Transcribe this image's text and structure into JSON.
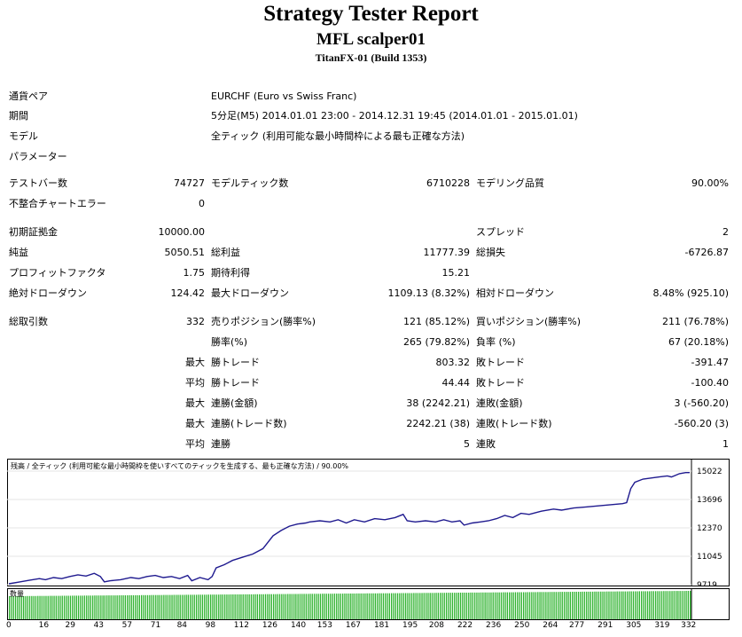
{
  "report": {
    "title": "Strategy Tester Report",
    "ea_name": "MFL scalper01",
    "server": "TitanFX-01 (Build 1353)"
  },
  "info": [
    {
      "label": "通貨ペア",
      "value": "EURCHF (Euro vs Swiss Franc)"
    },
    {
      "label": "期間",
      "value": "5分足(M5) 2014.01.01 23:00 - 2014.12.31 19:45 (2014.01.01 - 2015.01.01)"
    },
    {
      "label": "モデル",
      "value": "全ティック (利用可能な最小時間枠による最も正確な方法)"
    },
    {
      "label": "パラメーター",
      "value": ""
    }
  ],
  "stats": {
    "test_bars": {
      "label": "テストバー数",
      "value": "74727"
    },
    "model_ticks": {
      "label": "モデルティック数",
      "value": "6710228"
    },
    "model_quality": {
      "label": "モデリング品質",
      "value": "90.00%"
    },
    "mismatch_errors": {
      "label": "不整合チャートエラー",
      "value": "0"
    },
    "initial_deposit": {
      "label": "初期証拠金",
      "value": "10000.00"
    },
    "spread": {
      "label": "スプレッド",
      "value": "2"
    },
    "net_profit": {
      "label": "純益",
      "value": "5050.51"
    },
    "gross_profit": {
      "label": "総利益",
      "value": "11777.39"
    },
    "gross_loss": {
      "label": "総損失",
      "value": "-6726.87"
    },
    "profit_factor": {
      "label": "プロフィットファクタ",
      "value": "1.75"
    },
    "expected_payoff": {
      "label": "期待利得",
      "value": "15.21"
    },
    "abs_drawdown": {
      "label": "絶対ドローダウン",
      "value": "124.42"
    },
    "max_drawdown": {
      "label": "最大ドローダウン",
      "value": "1109.13 (8.32%)"
    },
    "rel_drawdown": {
      "label": "相対ドローダウン",
      "value": "8.48% (925.10)"
    },
    "total_trades": {
      "label": "総取引数",
      "value": "332"
    },
    "short_positions": {
      "label": "売りポジション(勝率%)",
      "value": "121 (85.12%)"
    },
    "long_positions": {
      "label": "買いポジション(勝率%)",
      "value": "211 (76.78%)"
    },
    "win_rate": {
      "label": "勝率(%)",
      "value": "265 (79.82%)"
    },
    "loss_rate": {
      "label": "負率 (%)",
      "value": "67 (20.18%)"
    },
    "largest_win": {
      "prefix": "最大",
      "label": "勝トレード",
      "value": "803.32"
    },
    "largest_loss": {
      "label": "敗トレード",
      "value": "-391.47"
    },
    "avg_win": {
      "prefix": "平均",
      "label": "勝トレード",
      "value": "44.44"
    },
    "avg_loss": {
      "label": "敗トレード",
      "value": "-100.40"
    },
    "max_consec_wins": {
      "prefix": "最大",
      "label": "連勝(金額)",
      "value": "38 (2242.21)"
    },
    "max_consec_losses": {
      "label": "連敗(金額)",
      "value": "3 (-560.20)"
    },
    "max_consec_profit": {
      "prefix": "最大",
      "label": "連勝(トレード数)",
      "value": "2242.21 (38)"
    },
    "max_consec_loss": {
      "label": "連敗(トレード数)",
      "value": "-560.20 (3)"
    },
    "avg_consec_wins": {
      "prefix": "平均",
      "label": "連勝",
      "value": "5"
    },
    "avg_consec_losses": {
      "label": "連敗",
      "value": "1"
    }
  },
  "chart_data": {
    "type": "line",
    "title": "残高 / 全ティック (利用可能な最小時間枠を使いすべてのティックを生成する、最も正確な方法) / 90.00%",
    "volume_label": "数量",
    "y_ticks": [
      "15022",
      "13696",
      "12370",
      "11045",
      "9719"
    ],
    "ylim": [
      9719,
      15022
    ],
    "x_ticks": [
      "0",
      "16",
      "29",
      "43",
      "57",
      "71",
      "84",
      "98",
      "112",
      "126",
      "140",
      "153",
      "167",
      "181",
      "195",
      "208",
      "222",
      "236",
      "250",
      "264",
      "277",
      "291",
      "305",
      "319",
      "332"
    ],
    "xlim": [
      0,
      335
    ],
    "series": [
      {
        "color": "#1f1a8f",
        "points": [
          [
            0,
            9760
          ],
          [
            5,
            9840
          ],
          [
            10,
            9920
          ],
          [
            15,
            10000
          ],
          [
            18,
            9950
          ],
          [
            22,
            10050
          ],
          [
            26,
            10000
          ],
          [
            30,
            10100
          ],
          [
            34,
            10180
          ],
          [
            38,
            10120
          ],
          [
            42,
            10250
          ],
          [
            45,
            10100
          ],
          [
            47,
            9850
          ],
          [
            50,
            9900
          ],
          [
            55,
            9950
          ],
          [
            60,
            10050
          ],
          [
            64,
            10000
          ],
          [
            68,
            10100
          ],
          [
            72,
            10150
          ],
          [
            76,
            10050
          ],
          [
            80,
            10100
          ],
          [
            84,
            10000
          ],
          [
            88,
            10150
          ],
          [
            90,
            9900
          ],
          [
            94,
            10050
          ],
          [
            98,
            9950
          ],
          [
            100,
            10100
          ],
          [
            102,
            10500
          ],
          [
            106,
            10650
          ],
          [
            110,
            10850
          ],
          [
            115,
            11000
          ],
          [
            120,
            11150
          ],
          [
            125,
            11400
          ],
          [
            130,
            12000
          ],
          [
            134,
            12250
          ],
          [
            138,
            12450
          ],
          [
            142,
            12550
          ],
          [
            146,
            12600
          ],
          [
            148,
            12650
          ],
          [
            153,
            12700
          ],
          [
            158,
            12650
          ],
          [
            162,
            12750
          ],
          [
            166,
            12600
          ],
          [
            170,
            12750
          ],
          [
            175,
            12650
          ],
          [
            180,
            12800
          ],
          [
            185,
            12750
          ],
          [
            190,
            12850
          ],
          [
            194,
            13000
          ],
          [
            196,
            12700
          ],
          [
            200,
            12650
          ],
          [
            205,
            12700
          ],
          [
            210,
            12650
          ],
          [
            214,
            12750
          ],
          [
            218,
            12650
          ],
          [
            222,
            12700
          ],
          [
            224,
            12500
          ],
          [
            228,
            12600
          ],
          [
            232,
            12650
          ],
          [
            236,
            12700
          ],
          [
            240,
            12800
          ],
          [
            244,
            12950
          ],
          [
            248,
            12850
          ],
          [
            252,
            13050
          ],
          [
            256,
            13000
          ],
          [
            262,
            13150
          ],
          [
            268,
            13250
          ],
          [
            272,
            13200
          ],
          [
            278,
            13300
          ],
          [
            284,
            13350
          ],
          [
            290,
            13400
          ],
          [
            296,
            13450
          ],
          [
            302,
            13500
          ],
          [
            304,
            13550
          ],
          [
            306,
            14200
          ],
          [
            308,
            14500
          ],
          [
            312,
            14650
          ],
          [
            316,
            14700
          ],
          [
            320,
            14750
          ],
          [
            324,
            14800
          ],
          [
            326,
            14750
          ],
          [
            330,
            14900
          ],
          [
            333,
            14950
          ],
          [
            335,
            14950
          ]
        ]
      }
    ]
  }
}
